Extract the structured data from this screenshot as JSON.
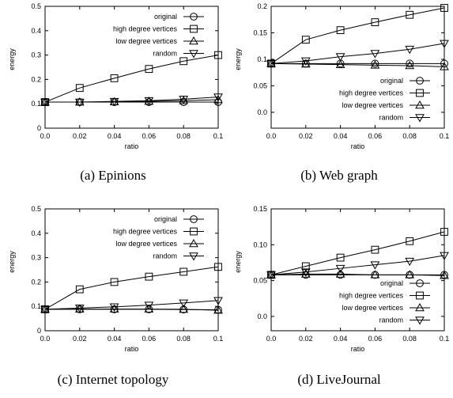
{
  "chart_data": [
    {
      "type": "line",
      "caption": "(a) Epinions",
      "xlabel": "ratio",
      "ylabel": "energy",
      "xlim": [
        0,
        0.1
      ],
      "ylim": [
        0,
        0.5
      ],
      "xticks": [
        "0.0",
        "0.02",
        "0.04",
        "0.06",
        "0.08",
        "0.1"
      ],
      "xtick_values": [
        0,
        0.02,
        0.04,
        0.06,
        0.08,
        0.1
      ],
      "yticks": [
        "0",
        "0.1",
        "0.2",
        "0.3",
        "0.4",
        "0.5"
      ],
      "ytick_values": [
        0,
        0.1,
        0.2,
        0.3,
        0.4,
        0.5
      ],
      "legend_position": "top-right",
      "x": [
        0,
        0.02,
        0.04,
        0.06,
        0.08,
        0.1
      ],
      "series": [
        {
          "name": "original",
          "marker": "circle",
          "values": [
            0.107,
            0.107,
            0.107,
            0.107,
            0.107,
            0.107
          ]
        },
        {
          "name": "high degree vertices",
          "marker": "square",
          "values": [
            0.107,
            0.165,
            0.205,
            0.243,
            0.275,
            0.3
          ]
        },
        {
          "name": "low degree vertices",
          "marker": "triangle-up",
          "values": [
            0.107,
            0.107,
            0.108,
            0.11,
            0.113,
            0.117
          ]
        },
        {
          "name": "random",
          "marker": "triangle-down",
          "values": [
            0.107,
            0.107,
            0.11,
            0.113,
            0.119,
            0.128
          ]
        }
      ]
    },
    {
      "type": "line",
      "caption": "(b) Web graph",
      "xlabel": "ratio",
      "ylabel": "energy",
      "xlim": [
        0,
        0.1
      ],
      "ylim": [
        -0.03,
        0.2
      ],
      "xticks": [
        "0.0",
        "0.02",
        "0.04",
        "0.06",
        "0.08",
        "0.1"
      ],
      "xtick_values": [
        0,
        0.02,
        0.04,
        0.06,
        0.08,
        0.1
      ],
      "yticks": [
        "0.0",
        "0.05",
        "0.1",
        "0.15",
        "0.2"
      ],
      "ytick_values": [
        0,
        0.05,
        0.1,
        0.15,
        0.2
      ],
      "legend_position": "bottom-right",
      "x": [
        0,
        0.02,
        0.04,
        0.06,
        0.08,
        0.1
      ],
      "series": [
        {
          "name": "original",
          "marker": "circle",
          "values": [
            0.092,
            0.092,
            0.092,
            0.092,
            0.092,
            0.092
          ]
        },
        {
          "name": "high degree vertices",
          "marker": "square",
          "values": [
            0.092,
            0.137,
            0.155,
            0.17,
            0.184,
            0.197
          ]
        },
        {
          "name": "low degree vertices",
          "marker": "triangle-up",
          "values": [
            0.092,
            0.091,
            0.09,
            0.089,
            0.088,
            0.086
          ]
        },
        {
          "name": "random",
          "marker": "triangle-down",
          "values": [
            0.092,
            0.097,
            0.105,
            0.111,
            0.119,
            0.13
          ]
        }
      ]
    },
    {
      "type": "line",
      "caption": "(c) Internet topology",
      "xlabel": "ratio",
      "ylabel": "energy",
      "xlim": [
        0,
        0.1
      ],
      "ylim": [
        0,
        0.5
      ],
      "xticks": [
        "0.0",
        "0.02",
        "0.04",
        "0.06",
        "0.08",
        "0.1"
      ],
      "xtick_values": [
        0,
        0.02,
        0.04,
        0.06,
        0.08,
        0.1
      ],
      "yticks": [
        "0",
        "0.1",
        "0.2",
        "0.3",
        "0.4",
        "0.5"
      ],
      "ytick_values": [
        0,
        0.1,
        0.2,
        0.3,
        0.4,
        0.5
      ],
      "legend_position": "top-right",
      "x": [
        0,
        0.02,
        0.04,
        0.06,
        0.08,
        0.1
      ],
      "series": [
        {
          "name": "original",
          "marker": "circle",
          "values": [
            0.088,
            0.088,
            0.088,
            0.088,
            0.087,
            0.086
          ]
        },
        {
          "name": "high degree vertices",
          "marker": "square",
          "values": [
            0.088,
            0.17,
            0.2,
            0.222,
            0.242,
            0.262
          ]
        },
        {
          "name": "low degree vertices",
          "marker": "triangle-up",
          "values": [
            0.088,
            0.089,
            0.089,
            0.089,
            0.088,
            0.084
          ]
        },
        {
          "name": "random",
          "marker": "triangle-down",
          "values": [
            0.088,
            0.093,
            0.098,
            0.105,
            0.114,
            0.124
          ]
        }
      ]
    },
    {
      "type": "line",
      "caption": "(d) LiveJournal",
      "xlabel": "ratio",
      "ylabel": "energy",
      "xlim": [
        0,
        0.1
      ],
      "ylim": [
        -0.02,
        0.15
      ],
      "xticks": [
        "0.0",
        "0.02",
        "0.04",
        "0.06",
        "0.08",
        "0.1"
      ],
      "xtick_values": [
        0,
        0.02,
        0.04,
        0.06,
        0.08,
        0.1
      ],
      "yticks": [
        "0.0",
        "0.05",
        "0.10",
        "0.15"
      ],
      "ytick_values": [
        0,
        0.05,
        0.1,
        0.15
      ],
      "legend_position": "bottom-right",
      "x": [
        0,
        0.02,
        0.04,
        0.06,
        0.08,
        0.1
      ],
      "series": [
        {
          "name": "original",
          "marker": "circle",
          "values": [
            0.058,
            0.058,
            0.058,
            0.058,
            0.058,
            0.058
          ]
        },
        {
          "name": "high degree vertices",
          "marker": "square",
          "values": [
            0.058,
            0.07,
            0.082,
            0.093,
            0.105,
            0.118
          ]
        },
        {
          "name": "low degree vertices",
          "marker": "triangle-up",
          "values": [
            0.058,
            0.059,
            0.059,
            0.058,
            0.058,
            0.057
          ]
        },
        {
          "name": "random",
          "marker": "triangle-down",
          "values": [
            0.058,
            0.062,
            0.067,
            0.072,
            0.077,
            0.085
          ]
        }
      ]
    }
  ]
}
